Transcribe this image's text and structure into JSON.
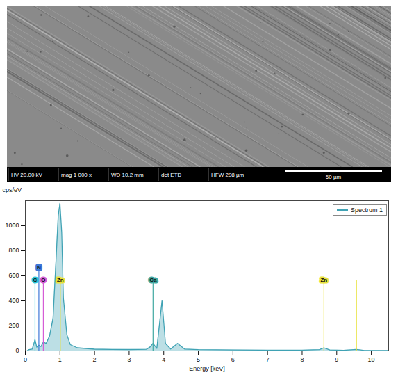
{
  "sem_image": {
    "info_bar": [
      "HV 20.00 kV",
      "mag 1 000 x",
      "WD 10.2 mm",
      "det ETD",
      "HFW 298 µm"
    ],
    "scale_bar": "50 µm"
  },
  "chart_data": {
    "type": "line",
    "x_label": "Energy [keV]",
    "y_label": "cps/eV",
    "x": [
      0.05,
      0.1,
      0.2,
      0.28,
      0.33,
      0.39,
      0.45,
      0.52,
      0.6,
      0.7,
      0.8,
      0.9,
      0.95,
      1.0,
      1.05,
      1.1,
      1.2,
      1.3,
      1.5,
      2.0,
      2.5,
      3.0,
      3.5,
      3.6,
      3.69,
      3.8,
      3.95,
      4.05,
      4.2,
      4.4,
      4.6,
      5.0,
      6.0,
      7.0,
      8.0,
      8.5,
      8.63,
      8.8,
      9.2,
      9.57,
      9.8,
      10.5
    ],
    "series": [
      {
        "name": "Spectrum 1",
        "color": "#3fa2b4",
        "values": [
          0,
          10,
          15,
          90,
          30,
          45,
          35,
          70,
          60,
          120,
          260,
          800,
          1080,
          1180,
          950,
          420,
          130,
          50,
          25,
          14,
          12,
          11,
          13,
          30,
          60,
          20,
          400,
          60,
          15,
          60,
          15,
          10,
          8,
          6,
          6,
          10,
          25,
          8,
          5,
          12,
          4,
          3
        ]
      }
    ],
    "xlim": [
      0,
      10.5
    ],
    "xticks": [
      0,
      1,
      2,
      3,
      4,
      5,
      6,
      7,
      8,
      9,
      10
    ],
    "ylim": [
      0,
      1200
    ],
    "yticks": [
      0,
      200,
      400,
      600,
      800,
      1000
    ],
    "legend": "top-right",
    "element_lines": [
      {
        "label": "C",
        "energy": 0.28,
        "color": "#29c7d8"
      },
      {
        "label": "N",
        "energy": 0.39,
        "color": "#3c78d8"
      },
      {
        "label": "O",
        "energy": 0.52,
        "color": "#d65cd6"
      },
      {
        "label": "Zn",
        "energy": 1.01,
        "color": "#e8e23a"
      },
      {
        "label": "Ca",
        "energy": 3.69,
        "color": "#3fa8a0"
      },
      {
        "label": "Zn",
        "energy": 8.63,
        "color": "#e8e23a"
      },
      {
        "label": null,
        "energy": 9.57,
        "color": "#e8e23a"
      }
    ]
  }
}
